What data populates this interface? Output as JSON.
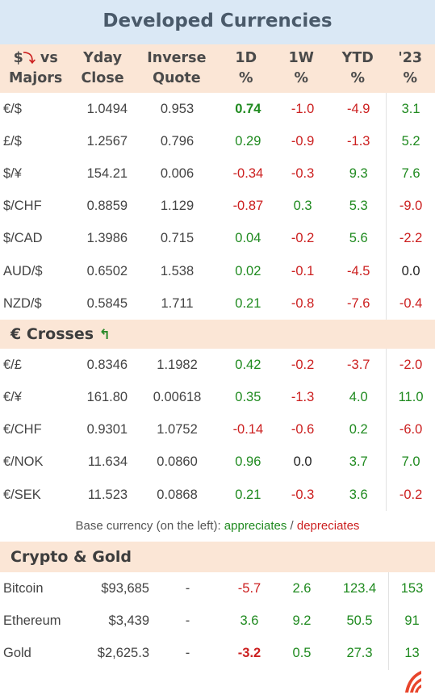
{
  "title": "Developed Currencies",
  "header": {
    "pair_prefix": "$",
    "pair_suffix": " vs",
    "pair_line2": "Majors",
    "yday_1": "Yday",
    "yday_2": "Close",
    "inv_1": "Inverse",
    "inv_2": "Quote",
    "d1_1": "1D",
    "d1_2": "%",
    "w1_1": "1W",
    "w1_2": "%",
    "ytd_1": "YTD",
    "ytd_2": "%",
    "y23_1": "'23",
    "y23_2": "%"
  },
  "majors": [
    {
      "pair": "€/$",
      "close": "1.0494",
      "inverse": "0.953",
      "d1": "0.74",
      "w1": "-1.0",
      "ytd": "-4.9",
      "y23": "3.1"
    },
    {
      "pair": "£/$",
      "close": "1.2567",
      "inverse": "0.796",
      "d1": "0.29",
      "w1": "-0.9",
      "ytd": "-1.3",
      "y23": "5.2"
    },
    {
      "pair": "$/¥",
      "close": "154.21",
      "inverse": "0.006",
      "d1": "-0.34",
      "w1": "-0.3",
      "ytd": "9.3",
      "y23": "7.6"
    },
    {
      "pair": "$/CHF",
      "close": "0.8859",
      "inverse": "1.129",
      "d1": "-0.87",
      "w1": "0.3",
      "ytd": "5.3",
      "y23": "-9.0"
    },
    {
      "pair": "$/CAD",
      "close": "1.3986",
      "inverse": "0.715",
      "d1": "0.04",
      "w1": "-0.2",
      "ytd": "5.6",
      "y23": "-2.2"
    },
    {
      "pair": "AUD/$",
      "close": "0.6502",
      "inverse": "1.538",
      "d1": "0.02",
      "w1": "-0.1",
      "ytd": "-4.5",
      "y23": "0.0"
    },
    {
      "pair": "NZD/$",
      "close": "0.5845",
      "inverse": "1.711",
      "d1": "0.21",
      "w1": "-0.8",
      "ytd": "-7.6",
      "y23": "-0.4"
    }
  ],
  "crosses_title": "€ Crosses",
  "crosses": [
    {
      "pair": "€/£",
      "close": "0.8346",
      "inverse": "1.1982",
      "d1": "0.42",
      "w1": "-0.2",
      "ytd": "-3.7",
      "y23": "-2.0"
    },
    {
      "pair": "€/¥",
      "close": "161.80",
      "inverse": "0.00618",
      "d1": "0.35",
      "w1": "-1.3",
      "ytd": "4.0",
      "y23": "11.0"
    },
    {
      "pair": "€/CHF",
      "close": "0.9301",
      "inverse": "1.0752",
      "d1": "-0.14",
      "w1": "-0.6",
      "ytd": "0.2",
      "y23": "-6.0"
    },
    {
      "pair": "€/NOK",
      "close": "11.634",
      "inverse": "0.0860",
      "d1": "0.96",
      "w1": "0.0",
      "ytd": "3.7",
      "y23": "7.0"
    },
    {
      "pair": "€/SEK",
      "close": "11.523",
      "inverse": "0.0868",
      "d1": "0.21",
      "w1": "-0.3",
      "ytd": "3.6",
      "y23": "-0.2"
    }
  ],
  "legend": {
    "prefix": "Base currency (on the left):  ",
    "up": "appreciates",
    "sep": " / ",
    "down": "depreciates"
  },
  "crypto_title": "Crypto & Gold",
  "crypto": [
    {
      "name": "Bitcoin",
      "price": "$93,685",
      "inverse": "-",
      "d1": "-5.7",
      "w1": "2.6",
      "ytd": "123.4",
      "y23": "153"
    },
    {
      "name": "Ethereum",
      "price": "$3,439",
      "inverse": "-",
      "d1": "3.6",
      "w1": "9.2",
      "ytd": "50.5",
      "y23": "91"
    },
    {
      "name": "Gold",
      "price": "$2,625.3",
      "inverse": "-",
      "d1": "-3.2",
      "w1": "0.5",
      "ytd": "27.3",
      "y23": "13"
    }
  ],
  "colors": {
    "positive": "#1f8a1f",
    "negative": "#cc2020",
    "header_bg": "#dae8f5",
    "section_bg": "#fbe6d6",
    "logo": "#e8452c"
  },
  "icons": {
    "down_arrow": "red-curved-down-arrow-icon",
    "up_arrow": "green-curved-up-arrow-icon",
    "logo": "brand-logo-icon"
  }
}
